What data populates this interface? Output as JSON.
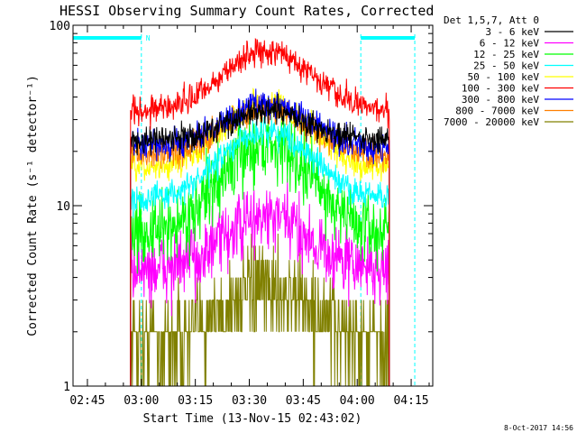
{
  "chart_data": {
    "type": "line",
    "title": "HESSI Observing Summary Count Rates, Corrected",
    "xlabel": "Start Time (13-Nov-15 02:43:02)",
    "ylabel": "Corrected Count Rate (s⁻¹ detector⁻¹)",
    "yscale": "log",
    "ylim": [
      1,
      100
    ],
    "xlim": [
      "02:41",
      "04:21"
    ],
    "x_ticks": [
      "02:45",
      "03:00",
      "03:15",
      "03:30",
      "03:45",
      "04:00",
      "04:15"
    ],
    "y_ticks": [
      "1",
      "10",
      "100"
    ],
    "legend_title": "Det 1,5,7, Att 0",
    "legend_position": "top-right, outside plot",
    "timestamp": "8-Oct-2017 14:56",
    "data_window": {
      "start": "02:57",
      "end": "04:09"
    },
    "flare_peak_time": "03:35",
    "series": [
      {
        "name": "3 - 6 keV",
        "color": "#000000",
        "baseline": 23,
        "peak": 33
      },
      {
        "name": "6 - 12 keV",
        "color": "#ff00ff",
        "baseline": 4.4,
        "peak": 8.5
      },
      {
        "name": "12 - 25 keV",
        "color": "#00ff00",
        "baseline": 7,
        "peak": 22
      },
      {
        "name": "25 - 50 keV",
        "color": "#00ffff",
        "baseline": 11,
        "peak": 26
      },
      {
        "name": "50 - 100 keV",
        "color": "#ffff00",
        "baseline": 16,
        "peak": 37
      },
      {
        "name": "100 - 300 keV",
        "color": "#ff0000",
        "baseline": 34,
        "peak": 72
      },
      {
        "name": "300 - 800 keV",
        "color": "#0000ff",
        "baseline": 21,
        "peak": 37
      },
      {
        "name": "800 - 7000 keV",
        "color": "#ff7f00",
        "baseline": 19,
        "peak": 35
      },
      {
        "name": "7000 - 20000 keV",
        "color": "#808000",
        "baseline": 1.8,
        "peak": 3.5
      }
    ],
    "annotations": {
      "night_bars": [
        {
          "start": "02:41",
          "end": "03:00"
        },
        {
          "start": "04:01",
          "end": "04:16"
        }
      ],
      "night_label": "N",
      "night_lines": [
        "03:00",
        "04:01",
        "04:16"
      ],
      "saa_line": "02:41"
    },
    "accent_color": "#00ffff"
  }
}
